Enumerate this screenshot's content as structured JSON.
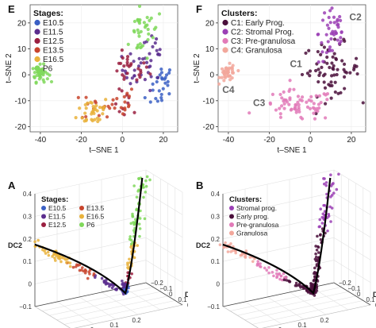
{
  "panels": {
    "E": {
      "letter": "E",
      "chart_data": {
        "type": "scatter",
        "xlabel": "t–SNE 1",
        "ylabel": "t–SNE 2",
        "xlim": [
          -45,
          27
        ],
        "ylim": [
          -22,
          27
        ],
        "xticks": [
          -40,
          -20,
          0,
          20
        ],
        "yticks": [
          -20,
          -10,
          0,
          10,
          20
        ],
        "legend_title": "Stages:",
        "legend_position": "top-left",
        "series": [
          {
            "name": "E10.5",
            "color": "#3a5fc4",
            "clusters": [
              {
                "cx": 20,
                "cy": -2,
                "sx": 2.5,
                "sy": 3,
                "n": 22
              },
              {
                "cx": 16,
                "cy": -10,
                "sx": 3,
                "sy": 2,
                "n": 6
              }
            ]
          },
          {
            "name": "E11.5",
            "color": "#5b2d8e",
            "clusters": [
              {
                "cx": 10,
                "cy": 2,
                "sx": 5,
                "sy": 4,
                "n": 30
              },
              {
                "cx": 14,
                "cy": 10,
                "sx": 3,
                "sy": 3,
                "n": 10
              }
            ]
          },
          {
            "name": "E12.5",
            "color": "#9a1f40",
            "clusters": [
              {
                "cx": 3,
                "cy": 2,
                "sx": 5,
                "sy": 3,
                "n": 26
              },
              {
                "cx": 2,
                "cy": -12,
                "sx": 3,
                "sy": 3,
                "n": 10
              }
            ]
          },
          {
            "name": "E13.5",
            "color": "#c8442c",
            "clusters": [
              {
                "cx": -10,
                "cy": -12,
                "sx": 5,
                "sy": 3,
                "n": 20
              },
              {
                "cx": 0,
                "cy": -10,
                "sx": 3,
                "sy": 3,
                "n": 10
              }
            ]
          },
          {
            "name": "E16.5",
            "color": "#e9b23b",
            "clusters": [
              {
                "cx": -14,
                "cy": -14,
                "sx": 4,
                "sy": 3,
                "n": 34
              }
            ]
          },
          {
            "name": "P6",
            "color": "#7fd85a",
            "clusters": [
              {
                "cx": -40,
                "cy": 0.5,
                "sx": 2,
                "sy": 1.6,
                "n": 40
              },
              {
                "cx": 8,
                "cy": 16,
                "sx": 2.5,
                "sy": 6,
                "n": 28
              },
              {
                "cx": 14,
                "cy": 20,
                "sx": 2,
                "sy": 2,
                "n": 10
              }
            ]
          }
        ]
      }
    },
    "F": {
      "letter": "F",
      "chart_data": {
        "type": "scatter",
        "xlabel": "t–SNE 1",
        "ylabel": "t–SNE 2",
        "xlim": [
          -45,
          27
        ],
        "ylim": [
          -22,
          27
        ],
        "xticks": [
          -40,
          -20,
          0,
          20
        ],
        "yticks": [
          -20,
          -10,
          0,
          10,
          20
        ],
        "legend_title": "Clusters:",
        "legend_position": "top-left",
        "series": [
          {
            "name": "C1: Early Prog.",
            "color": "#4a0f3b",
            "clusters": [
              {
                "cx": 10,
                "cy": 2,
                "sx": 7,
                "sy": 5,
                "n": 70
              }
            ]
          },
          {
            "name": "C2: Stromal Prog.",
            "color": "#9b3fb5",
            "clusters": [
              {
                "cx": 11,
                "cy": 16,
                "sx": 3.5,
                "sy": 6,
                "n": 45
              }
            ]
          },
          {
            "name": "C3: Pre-granulosa",
            "color": "#e27ab8",
            "clusters": [
              {
                "cx": -6,
                "cy": -12,
                "sx": 9,
                "sy": 3,
                "n": 70
              }
            ]
          },
          {
            "name": "C4: Granulosa",
            "color": "#f2a79b",
            "clusters": [
              {
                "cx": -40,
                "cy": 0.5,
                "sx": 2,
                "sy": 1.6,
                "n": 40
              }
            ]
          }
        ],
        "annotations": [
          {
            "text": "C1",
            "x": -7,
            "y": 3
          },
          {
            "text": "C2",
            "x": 22,
            "y": 21
          },
          {
            "text": "C3",
            "x": -25,
            "y": -12
          },
          {
            "text": "C4",
            "x": -40,
            "y": -7
          }
        ]
      }
    },
    "A": {
      "letter": "A",
      "chart_data": {
        "type": "scatter",
        "projection": "3d",
        "xlabel": "DC1",
        "ylabel": "DC2",
        "zlabel": "DC3",
        "dc2_ticks": [
          "0.4",
          "0.3",
          "0.2",
          "0.1",
          "0",
          "−0.1"
        ],
        "dc1_ticks": [
          "−0.1",
          "0",
          "0.1",
          "0.2"
        ],
        "dc3_ticks": [
          "−0.2",
          "−0.1",
          "0",
          "0.1",
          "0.2"
        ],
        "legend_title": "Stages:",
        "legend_position": "top-left",
        "series": [
          {
            "name": "E10.5",
            "color": "#3a5fc4"
          },
          {
            "name": "E11.5",
            "color": "#5b2d8e"
          },
          {
            "name": "E12.5",
            "color": "#9a1f40"
          },
          {
            "name": "E13.5",
            "color": "#c8442c"
          },
          {
            "name": "E16.5",
            "color": "#e9b23b"
          },
          {
            "name": "P6",
            "color": "#7fd85a"
          }
        ]
      }
    },
    "B": {
      "letter": "B",
      "chart_data": {
        "type": "scatter",
        "projection": "3d",
        "xlabel": "DC1",
        "ylabel": "DC2",
        "zlabel": "DC3",
        "dc2_ticks": [
          "0.4",
          "0.3",
          "0.2",
          "0.1",
          "0",
          "−0.1"
        ],
        "dc1_ticks": [
          "−0.1",
          "0",
          "0.1",
          "0.2"
        ],
        "dc3_ticks": [
          "−0.2",
          "−0.1",
          "0",
          "0.1",
          "0.2"
        ],
        "legend_title": "Clusters:",
        "legend_position": "top-left",
        "series": [
          {
            "name": "Stromal prog.",
            "color": "#9b3fb5"
          },
          {
            "name": "Early prog.",
            "color": "#4a0f3b"
          },
          {
            "name": "Pre-granulosa",
            "color": "#e27ab8"
          },
          {
            "name": "Granulosa",
            "color": "#f2a79b"
          }
        ]
      }
    }
  }
}
